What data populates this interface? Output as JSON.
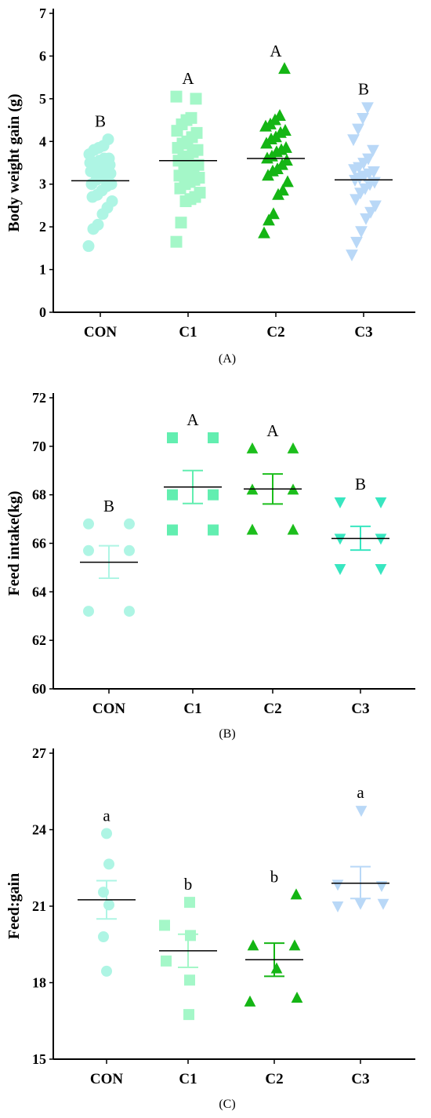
{
  "chart_data": [
    {
      "type": "scatter",
      "panel_label": "(A)",
      "ylabel": "Body weight gain (g)",
      "xlabel": "",
      "ylim": [
        0,
        7
      ],
      "yticks": [
        "0",
        "1",
        "2",
        "3",
        "4",
        "5",
        "6",
        "7"
      ],
      "categories": [
        "CON",
        "C1",
        "C2",
        "C3"
      ],
      "markers": [
        "circle",
        "square",
        "triangle-up",
        "triangle-down"
      ],
      "colors": [
        "#aef5e4",
        "#a4f7c8",
        "#14b514",
        "#b9d8f7"
      ],
      "means": [
        3.08,
        3.55,
        3.6,
        3.1
      ],
      "sem_visible": false,
      "letters": [
        "B",
        "A",
        "A",
        "B"
      ],
      "points": [
        [
          1.55,
          1.95,
          2.05,
          2.3,
          2.45,
          2.6,
          2.7,
          2.75,
          2.85,
          2.95,
          3.0,
          3.0,
          3.1,
          3.15,
          3.2,
          3.25,
          3.3,
          3.3,
          3.35,
          3.4,
          3.45,
          3.5,
          3.5,
          3.55,
          3.6,
          3.6,
          3.7,
          3.8,
          3.85,
          3.9,
          4.05
        ],
        [
          1.65,
          2.1,
          2.6,
          2.65,
          2.7,
          2.8,
          2.9,
          3.0,
          3.05,
          3.1,
          3.15,
          3.2,
          3.3,
          3.35,
          3.4,
          3.45,
          3.55,
          3.6,
          3.65,
          3.75,
          3.8,
          3.85,
          3.95,
          4.0,
          4.1,
          4.2,
          4.25,
          4.4,
          4.5,
          4.55,
          5.0,
          5.05
        ],
        [
          1.85,
          2.15,
          2.3,
          2.75,
          2.85,
          3.05,
          3.2,
          3.3,
          3.35,
          3.45,
          3.55,
          3.6,
          3.65,
          3.75,
          3.8,
          3.85,
          3.95,
          4.05,
          4.1,
          4.2,
          4.25,
          4.35,
          4.4,
          4.5,
          4.6,
          5.7
        ],
        [
          1.35,
          1.65,
          1.9,
          2.2,
          2.35,
          2.5,
          2.65,
          2.8,
          2.9,
          3.0,
          3.05,
          3.1,
          3.15,
          3.2,
          3.25,
          3.3,
          3.35,
          3.4,
          3.5,
          3.6,
          3.8,
          4.05,
          4.3,
          4.55,
          4.8
        ]
      ]
    },
    {
      "type": "scatter",
      "panel_label": "(B)",
      "ylabel": "Feed intake(kg)",
      "xlabel": "",
      "ylim": [
        60,
        72
      ],
      "yticks": [
        "60",
        "62",
        "64",
        "66",
        "68",
        "70",
        "72"
      ],
      "categories": [
        "CON",
        "C1",
        "C2",
        "C3"
      ],
      "markers": [
        "circle",
        "square",
        "triangle-up",
        "triangle-down"
      ],
      "colors": [
        "#aef5e4",
        "#62eeb0",
        "#1cbe1c",
        "#38e6c0"
      ],
      "means": [
        65.22,
        68.32,
        68.24,
        66.2
      ],
      "sem_low": [
        64.56,
        67.64,
        67.62,
        65.72
      ],
      "sem_high": [
        65.9,
        69.0,
        68.86,
        66.7
      ],
      "sem_colors": [
        "#aef5e4",
        "#62eeb0",
        "#1cbe1c",
        "#38e6c0"
      ],
      "letters": [
        "B",
        "A",
        "A",
        "B"
      ],
      "points": [
        [
          63.2,
          63.2,
          65.7,
          65.7,
          66.8,
          66.8
        ],
        [
          66.55,
          66.55,
          68.0,
          68.0,
          70.35,
          70.35
        ],
        [
          66.55,
          66.55,
          68.2,
          68.2,
          69.9,
          69.9
        ],
        [
          64.95,
          64.95,
          66.2,
          66.2,
          67.7,
          67.7
        ]
      ]
    },
    {
      "type": "scatter",
      "panel_label": "(C)",
      "ylabel": "Feed:gain",
      "xlabel": "",
      "ylim": [
        15,
        27
      ],
      "yticks": [
        "15",
        "18",
        "21",
        "24",
        "27"
      ],
      "categories": [
        "CON",
        "C1",
        "C2",
        "C3"
      ],
      "markers": [
        "circle",
        "square",
        "triangle-up",
        "triangle-down"
      ],
      "colors": [
        "#aef5e4",
        "#a4f7c8",
        "#14b514",
        "#b9d8f7"
      ],
      "means": [
        21.25,
        19.25,
        18.9,
        21.9
      ],
      "sem_low": [
        20.5,
        18.6,
        18.25,
        21.3
      ],
      "sem_high": [
        22.0,
        19.9,
        19.55,
        22.55
      ],
      "sem_colors": [
        "#aef5e4",
        "#a4f7c8",
        "#14b514",
        "#b9d8f7"
      ],
      "letters": [
        "a",
        "b",
        "b",
        "a"
      ],
      "points": [
        [
          18.45,
          19.8,
          21.05,
          21.55,
          22.65,
          23.85
        ],
        [
          16.75,
          18.1,
          18.85,
          19.85,
          20.25,
          21.15
        ],
        [
          17.25,
          17.4,
          18.55,
          19.45,
          19.45,
          21.45
        ],
        [
          21.0,
          21.1,
          21.1,
          21.8,
          21.85,
          24.75
        ]
      ]
    }
  ]
}
